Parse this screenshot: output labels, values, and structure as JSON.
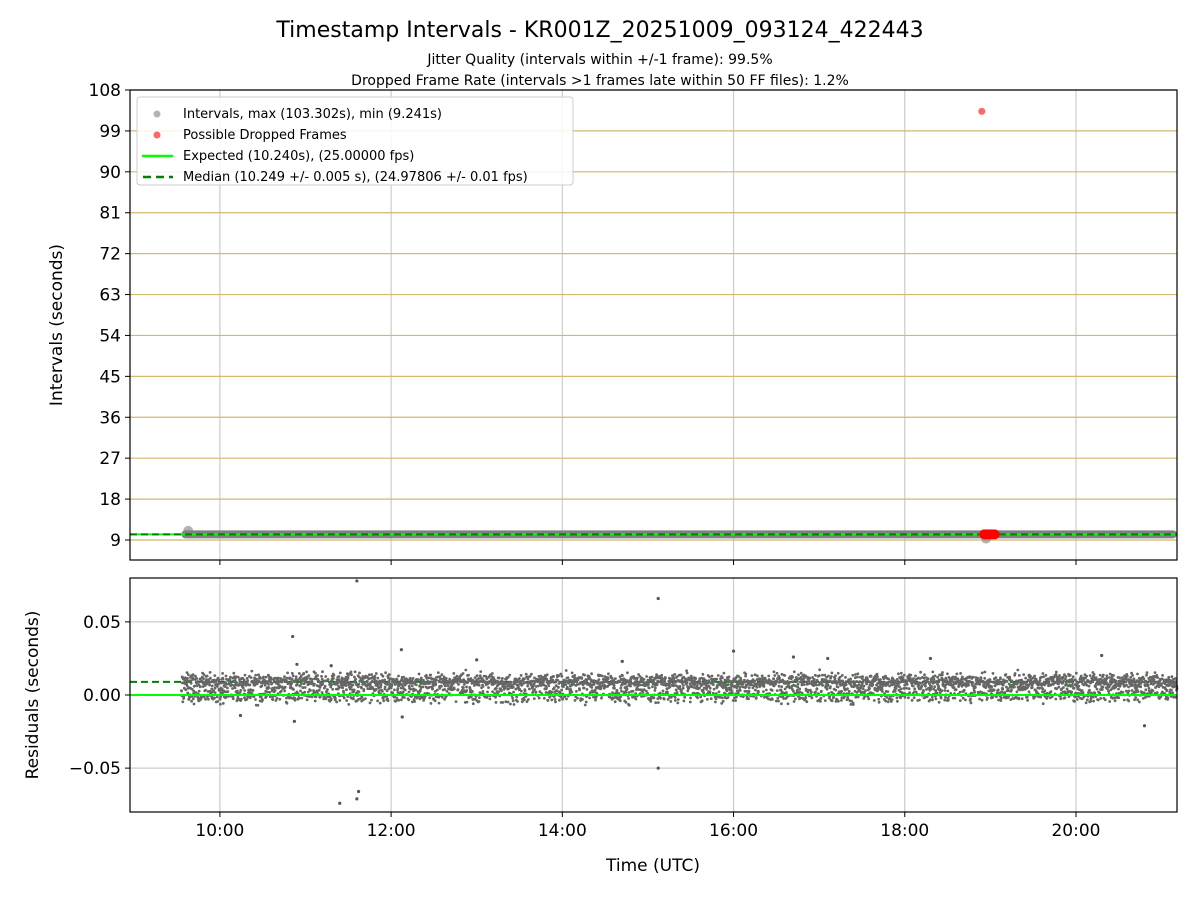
{
  "chart_data": [
    {
      "type": "scatter",
      "title": "Timestamp Intervals - KR001Z_20251009_093124_422443",
      "subtitle_lines": [
        "Jitter Quality (intervals within +/-1 frame): 99.5%",
        "Dropped Frame Rate (intervals >1 frames late within 50 FF files): 1.2%"
      ],
      "ylabel": "Intervals (seconds)",
      "ylim": [
        4.6,
        108
      ],
      "xlim_hours": [
        8.95,
        21.18
      ],
      "yticks": [
        9,
        18,
        27,
        36,
        45,
        54,
        63,
        72,
        81,
        90,
        99,
        108
      ],
      "xticks_hours": [
        10,
        12,
        14,
        16,
        18,
        20
      ],
      "legend_position": "top-left",
      "legend": [
        "Intervals, max (103.302s), min (9.241s)",
        "Possible Dropped Frames",
        "Expected (10.240s), (25.00000 fps)",
        "Median (10.249 +/- 0.005 s), (24.97806 +/- 0.01 fps)"
      ],
      "expected_interval": 10.24,
      "median_interval": 10.249,
      "max_interval": 103.302,
      "min_interval": 9.241,
      "series_time_range_hours": [
        9.55,
        21.18
      ],
      "dropped_frames": [
        [
          18.9,
          103.302
        ],
        [
          18.93,
          10.25
        ],
        [
          18.96,
          10.25
        ],
        [
          18.99,
          10.25
        ],
        [
          19.02,
          10.25
        ],
        [
          19.05,
          10.25
        ]
      ],
      "notable_points": [
        [
          9.63,
          11.0
        ],
        [
          18.95,
          9.3
        ]
      ],
      "colors": {
        "intervals": "#808080",
        "dropped": "#ff0000",
        "expected": "#00ff00",
        "median": "#008000",
        "hgrid": "#d2b96e",
        "vgrid": "#cccccc"
      }
    },
    {
      "type": "scatter",
      "ylabel": "Residuals (seconds)",
      "xlabel": "Time (UTC)",
      "ylim": [
        -0.08,
        0.08
      ],
      "yticks": [
        -0.05,
        0.0,
        0.05
      ],
      "ytick_labels": [
        "−0.05",
        "0.00",
        "0.05"
      ],
      "xticks_hours": [
        10,
        12,
        14,
        16,
        18,
        20
      ],
      "xtick_labels": [
        "10:00",
        "12:00",
        "14:00",
        "16:00",
        "18:00",
        "20:00"
      ],
      "expected_residual": 0.0,
      "median_residual": 0.009,
      "residual_modes": [
        0.009,
        0.0
      ],
      "residual_spread": 0.004,
      "sample_interval_seconds": 10.249,
      "outliers": [
        [
          11.6,
          0.078
        ],
        [
          11.4,
          -0.074
        ],
        [
          11.6,
          -0.071
        ],
        [
          11.62,
          -0.066
        ],
        [
          15.12,
          0.066
        ],
        [
          15.12,
          -0.05
        ],
        [
          10.85,
          0.04
        ],
        [
          12.12,
          0.031
        ],
        [
          10.87,
          -0.018
        ],
        [
          20.8,
          -0.021
        ],
        [
          10.24,
          -0.014
        ],
        [
          12.13,
          -0.015
        ],
        [
          13.0,
          0.024
        ],
        [
          16.0,
          0.03
        ],
        [
          20.3,
          0.027
        ],
        [
          10.9,
          0.021
        ],
        [
          11.3,
          0.02
        ],
        [
          14.7,
          0.023
        ],
        [
          16.7,
          0.026
        ],
        [
          17.1,
          0.025
        ],
        [
          18.3,
          0.025
        ]
      ]
    }
  ]
}
